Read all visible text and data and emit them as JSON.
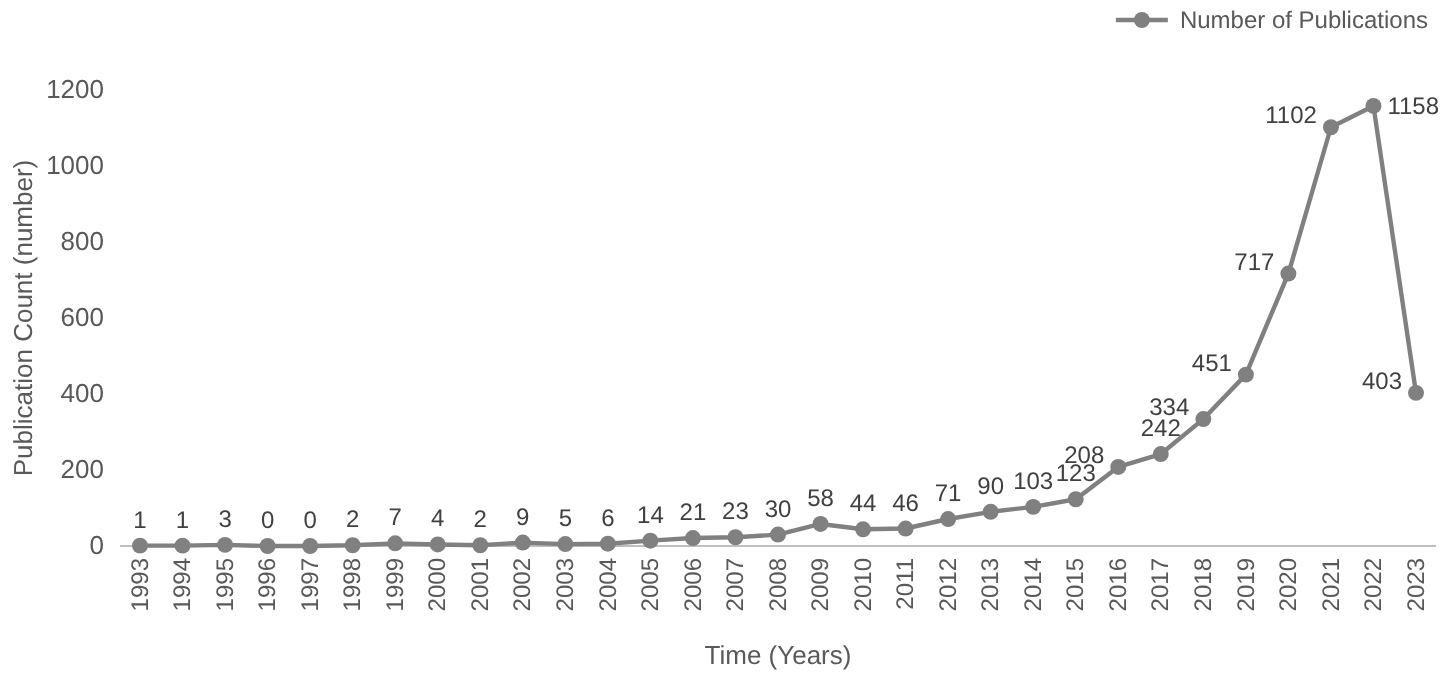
{
  "chart_data": {
    "type": "line",
    "xlabel": "Time (Years)",
    "ylabel": "Publication Count (number)",
    "categories": [
      "1993",
      "1994",
      "1995",
      "1996",
      "1997",
      "1998",
      "1999",
      "2000",
      "2001",
      "2002",
      "2003",
      "2004",
      "2005",
      "2006",
      "2007",
      "2008",
      "2009",
      "2010",
      "2011",
      "2012",
      "2013",
      "2014",
      "2015",
      "2016",
      "2017",
      "2018",
      "2019",
      "2020",
      "2021",
      "2022",
      "2023"
    ],
    "series": [
      {
        "name": "Number of Publications",
        "color": "#808080",
        "values": [
          1,
          1,
          3,
          0,
          0,
          2,
          7,
          4,
          2,
          9,
          5,
          6,
          14,
          21,
          23,
          30,
          58,
          44,
          46,
          71,
          90,
          103,
          123,
          208,
          242,
          334,
          451,
          717,
          1102,
          1158,
          403
        ]
      }
    ],
    "ylim": [
      0,
      1200
    ],
    "yticks": [
      0,
      200,
      400,
      600,
      800,
      1000,
      1200
    ],
    "grid": false,
    "legend": "top right",
    "marker": "circle",
    "line_style": "solid",
    "data_labels": true
  }
}
